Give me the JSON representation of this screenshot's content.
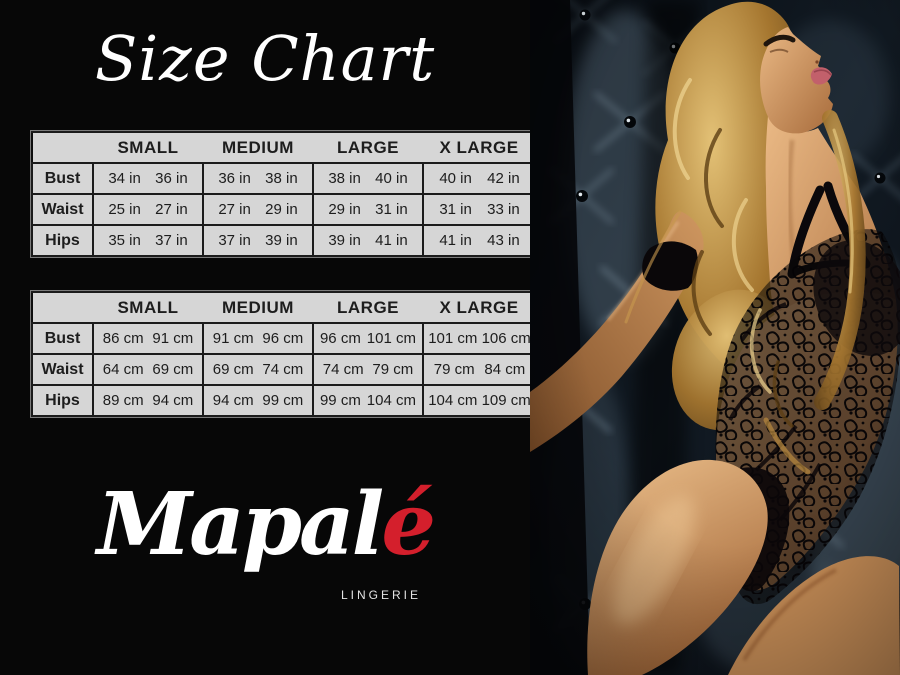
{
  "title": "Size Chart",
  "brand": {
    "script_white": "Mapal",
    "script_red": "é",
    "subtitle": "LINGERIE"
  },
  "size_chart": {
    "columns": [
      "SMALL",
      "MEDIUM",
      "LARGE",
      "X LARGE"
    ],
    "tables": [
      {
        "unit": "in",
        "rows": [
          {
            "label": "Bust",
            "values": [
              [
                "34 in",
                "36 in"
              ],
              [
                "36 in",
                "38 in"
              ],
              [
                "38 in",
                "40 in"
              ],
              [
                "40 in",
                "42 in"
              ]
            ]
          },
          {
            "label": "Waist",
            "values": [
              [
                "25 in",
                "27 in"
              ],
              [
                "27 in",
                "29 in"
              ],
              [
                "29 in",
                "31 in"
              ],
              [
                "31 in",
                "33 in"
              ]
            ]
          },
          {
            "label": "Hips",
            "values": [
              [
                "35 in",
                "37 in"
              ],
              [
                "37 in",
                "39 in"
              ],
              [
                "39 in",
                "41 in"
              ],
              [
                "41 in",
                "43 in"
              ]
            ]
          }
        ]
      },
      {
        "unit": "cm",
        "rows": [
          {
            "label": "Bust",
            "values": [
              [
                "86 cm",
                "91 cm"
              ],
              [
                "91 cm",
                "96 cm"
              ],
              [
                "96 cm",
                "101 cm"
              ],
              [
                "101 cm",
                "106 cm"
              ]
            ]
          },
          {
            "label": "Waist",
            "values": [
              [
                "64 cm",
                "69 cm"
              ],
              [
                "69 cm",
                "74 cm"
              ],
              [
                "74 cm",
                "79 cm"
              ],
              [
                "79 cm",
                "84 cm"
              ]
            ]
          },
          {
            "label": "Hips",
            "values": [
              [
                "89 cm",
                "94 cm"
              ],
              [
                "94 cm",
                "99 cm"
              ],
              [
                "99 cm",
                "104 cm"
              ],
              [
                "104 cm",
                "109 cm"
              ]
            ]
          }
        ]
      }
    ]
  },
  "colors": {
    "background": "#070707",
    "table_background": "#d6d6d6",
    "table_text": "#1d1d1d",
    "title_text": "#ffffff",
    "brand_accent_red": "#d41f2c",
    "upholstery_blue": "#31465a",
    "skin_tone": "#cf9a66",
    "hair_gold": "#c89a4e"
  },
  "photo": {
    "description": "model in black lace bodysuit against dark tufted upholstery"
  }
}
